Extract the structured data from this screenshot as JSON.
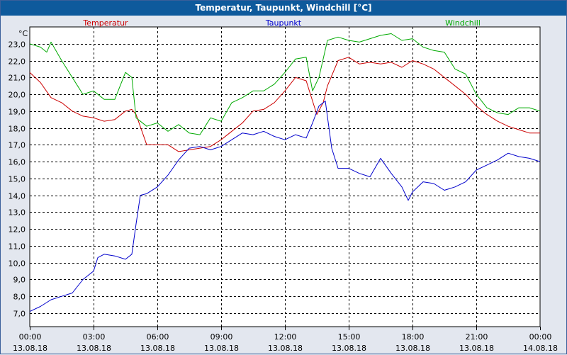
{
  "title": "Temperatur, Taupunkt, Windchill [°C]",
  "colors": {
    "titlebar": "#0e5a9c",
    "background": "#e3e7ef",
    "plot_background": "#ffffff",
    "grid": "#000000"
  },
  "chart_data": {
    "type": "line",
    "title": "Temperatur, Taupunkt, Windchill [°C]",
    "ylabel": "°C",
    "xlabel": "",
    "ylim": [
      6.2,
      24.0
    ],
    "xlim": [
      0,
      24
    ],
    "grid": true,
    "legend_placement": "top",
    "y_ticks": [
      "7,0",
      "8,0",
      "9,0",
      "10,0",
      "11,0",
      "12,0",
      "13,0",
      "14,0",
      "15,0",
      "16,0",
      "17,0",
      "18,0",
      "19,0",
      "20,0",
      "21,0",
      "22,0",
      "23,0"
    ],
    "y_tick_values": [
      7,
      8,
      9,
      10,
      11,
      12,
      13,
      14,
      15,
      16,
      17,
      18,
      19,
      20,
      21,
      22,
      23
    ],
    "x_ticks": [
      {
        "time": "00:00",
        "date": "13.08.18"
      },
      {
        "time": "03:00",
        "date": "13.08.18"
      },
      {
        "time": "06:00",
        "date": "13.08.18"
      },
      {
        "time": "09:00",
        "date": "13.08.18"
      },
      {
        "time": "12:00",
        "date": "13.08.18"
      },
      {
        "time": "15:00",
        "date": "13.08.18"
      },
      {
        "time": "18:00",
        "date": "13.08.18"
      },
      {
        "time": "21:00",
        "date": "13.08.18"
      },
      {
        "time": "00:00",
        "date": "14.08.18"
      }
    ],
    "series": [
      {
        "name": "Temperatur",
        "color": "#cc0000",
        "x": [
          0,
          0.5,
          1,
          1.5,
          2,
          2.5,
          3,
          3.5,
          4,
          4.5,
          4.8,
          5,
          5.5,
          6,
          6.5,
          7,
          7.5,
          8,
          8.5,
          9,
          9.5,
          10,
          10.5,
          11,
          11.5,
          12,
          12.5,
          13,
          13.5,
          13.8,
          14,
          14.5,
          15,
          15.5,
          16,
          16.5,
          17,
          17.5,
          18,
          18.5,
          19,
          19.5,
          20,
          20.5,
          21,
          21.5,
          22,
          22.5,
          23,
          23.5,
          24
        ],
        "values": [
          21.3,
          20.7,
          19.8,
          19.5,
          19.0,
          18.7,
          18.6,
          18.4,
          18.5,
          19.0,
          19.1,
          18.8,
          17.0,
          17.0,
          17.0,
          16.6,
          16.7,
          16.8,
          16.9,
          17.3,
          17.8,
          18.3,
          19.0,
          19.1,
          19.5,
          20.2,
          21.0,
          20.8,
          18.8,
          19.5,
          20.5,
          22.0,
          22.2,
          21.8,
          21.9,
          21.8,
          21.9,
          21.6,
          22.0,
          21.8,
          21.5,
          21.0,
          20.5,
          20.0,
          19.3,
          18.8,
          18.4,
          18.1,
          17.9,
          17.7,
          17.7
        ]
      },
      {
        "name": "Taupunkt",
        "color": "#0000cc",
        "x": [
          0,
          0.5,
          1,
          1.5,
          2,
          2.5,
          3,
          3.2,
          3.5,
          4,
          4.5,
          4.8,
          5,
          5.2,
          5.5,
          6,
          6.5,
          7,
          7.5,
          8,
          8.5,
          9,
          9.5,
          10,
          10.5,
          11,
          11.5,
          12,
          12.5,
          13,
          13.3,
          13.6,
          13.9,
          14.2,
          14.5,
          15,
          15.5,
          16,
          16.5,
          17,
          17.5,
          17.8,
          18,
          18.5,
          19,
          19.5,
          20,
          20.5,
          21,
          21.5,
          22,
          22.5,
          23,
          23.5,
          24
        ],
        "values": [
          7.1,
          7.4,
          7.8,
          8.0,
          8.2,
          9.0,
          9.5,
          10.3,
          10.5,
          10.4,
          10.2,
          10.5,
          12.3,
          14.0,
          14.1,
          14.5,
          15.2,
          16.1,
          16.8,
          16.9,
          16.7,
          16.9,
          17.3,
          17.7,
          17.6,
          17.8,
          17.5,
          17.3,
          17.6,
          17.4,
          18.3,
          19.3,
          19.6,
          16.8,
          15.6,
          15.6,
          15.3,
          15.1,
          16.2,
          15.3,
          14.5,
          13.7,
          14.2,
          14.8,
          14.7,
          14.3,
          14.5,
          14.8,
          15.5,
          15.8,
          16.1,
          16.5,
          16.3,
          16.2,
          16.0
        ]
      },
      {
        "name": "Windchill",
        "color": "#00aa00",
        "x": [
          0,
          0.5,
          0.8,
          1,
          1.5,
          2,
          2.5,
          3,
          3.5,
          4,
          4.5,
          4.8,
          5,
          5.5,
          6,
          6.5,
          7,
          7.5,
          8,
          8.5,
          9,
          9.5,
          10,
          10.5,
          11,
          11.5,
          12,
          12.5,
          13,
          13.3,
          13.6,
          14,
          14.5,
          15,
          15.5,
          16,
          16.5,
          17,
          17.5,
          18,
          18.5,
          19,
          19.5,
          20,
          20.5,
          21,
          21.5,
          22,
          22.5,
          23,
          23.5,
          24
        ],
        "values": [
          23.0,
          22.8,
          22.5,
          23.1,
          22.0,
          21.0,
          20.0,
          20.2,
          19.7,
          19.7,
          21.3,
          21.0,
          18.6,
          18.1,
          18.3,
          17.8,
          18.2,
          17.7,
          17.6,
          18.6,
          18.4,
          19.5,
          19.8,
          20.2,
          20.2,
          20.6,
          21.3,
          22.1,
          22.2,
          20.2,
          21.0,
          23.2,
          23.4,
          23.2,
          23.1,
          23.3,
          23.5,
          23.6,
          23.2,
          23.3,
          22.8,
          22.6,
          22.5,
          21.5,
          21.2,
          20.0,
          19.2,
          18.9,
          18.8,
          19.2,
          19.2,
          19.0
        ]
      }
    ]
  }
}
